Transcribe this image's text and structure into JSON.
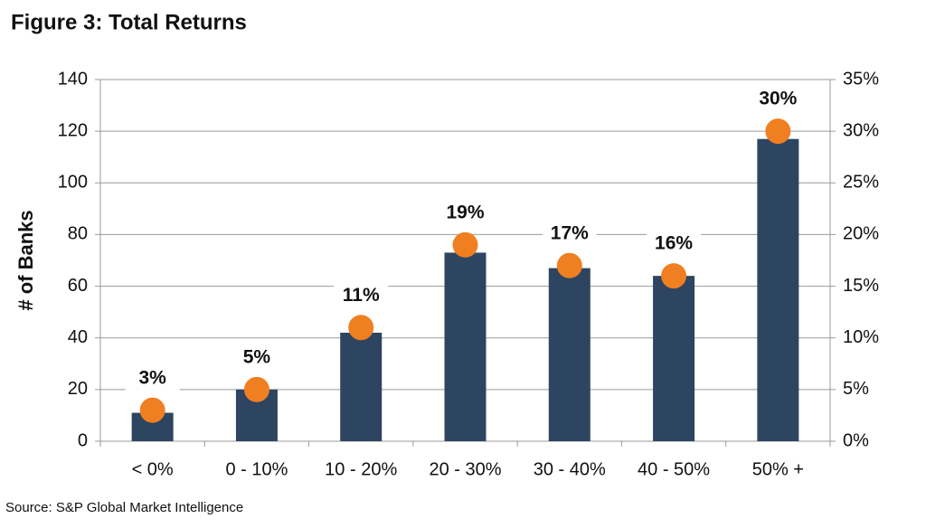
{
  "chart_data": {
    "type": "bar-dot",
    "title": "Figure 3: Total Returns",
    "y_label": "# of Banks",
    "source": "Source: S&P Global Market Intelligence",
    "categories": [
      "< 0%",
      "0 - 10%",
      "10 - 20%",
      "20 - 30%",
      "30 - 40%",
      "40 - 50%",
      "50% +"
    ],
    "series": [
      {
        "color": "#2d4560",
        "values": [
          11,
          20,
          42,
          73,
          67,
          64,
          117
        ]
      },
      {
        "color": "#f07f22",
        "axis": "y2",
        "values": [
          3,
          5,
          11,
          19,
          17,
          16,
          30
        ],
        "value_labels": [
          "3%",
          "5%",
          "11%",
          "19%",
          "17%",
          "16%",
          "30%"
        ]
      }
    ],
    "ylim": [
      0,
      140
    ],
    "yticks": [
      0,
      20,
      40,
      60,
      80,
      100,
      120,
      140
    ],
    "y2lim": [
      0,
      35
    ],
    "y2ticks": [
      {
        "value": 0,
        "label": "0%"
      },
      {
        "value": 5,
        "label": "5%"
      },
      {
        "value": 10,
        "label": "10%"
      },
      {
        "value": 15,
        "label": "15%"
      },
      {
        "value": 20,
        "label": "20%"
      },
      {
        "value": 25,
        "label": "25%"
      },
      {
        "value": 30,
        "label": "30%"
      },
      {
        "value": 35,
        "label": "35%"
      }
    ],
    "grid": true
  }
}
